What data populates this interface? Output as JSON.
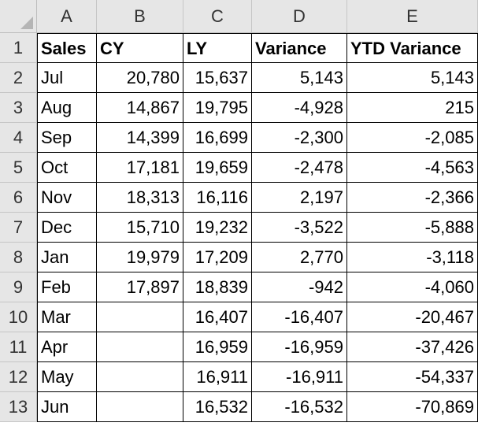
{
  "columns": [
    "A",
    "B",
    "C",
    "D",
    "E"
  ],
  "row_numbers": [
    "1",
    "2",
    "3",
    "4",
    "5",
    "6",
    "7",
    "8",
    "9",
    "10",
    "11",
    "12",
    "13"
  ],
  "header": {
    "sales": "Sales",
    "cy": "CY",
    "ly": "LY",
    "variance": "Variance",
    "ytd_variance": "YTD Variance"
  },
  "rows": [
    {
      "month": "Jul",
      "cy": "20,780",
      "ly": "15,637",
      "variance": "5,143",
      "ytd": "5,143"
    },
    {
      "month": "Aug",
      "cy": "14,867",
      "ly": "19,795",
      "variance": "-4,928",
      "ytd": "215"
    },
    {
      "month": "Sep",
      "cy": "14,399",
      "ly": "16,699",
      "variance": "-2,300",
      "ytd": "-2,085"
    },
    {
      "month": "Oct",
      "cy": "17,181",
      "ly": "19,659",
      "variance": "-2,478",
      "ytd": "-4,563"
    },
    {
      "month": "Nov",
      "cy": "18,313",
      "ly": "16,116",
      "variance": "2,197",
      "ytd": "-2,366"
    },
    {
      "month": "Dec",
      "cy": "15,710",
      "ly": "19,232",
      "variance": "-3,522",
      "ytd": "-5,888"
    },
    {
      "month": "Jan",
      "cy": "19,979",
      "ly": "17,209",
      "variance": "2,770",
      "ytd": "-3,118"
    },
    {
      "month": "Feb",
      "cy": "17,897",
      "ly": "18,839",
      "variance": "-942",
      "ytd": "-4,060"
    },
    {
      "month": "Mar",
      "cy": "",
      "ly": "16,407",
      "variance": "-16,407",
      "ytd": "-20,467"
    },
    {
      "month": "Apr",
      "cy": "",
      "ly": "16,959",
      "variance": "-16,959",
      "ytd": "-37,426"
    },
    {
      "month": "May",
      "cy": "",
      "ly": "16,911",
      "variance": "-16,911",
      "ytd": "-54,337"
    },
    {
      "month": "Jun",
      "cy": "",
      "ly": "16,532",
      "variance": "-16,532",
      "ytd": "-70,869"
    }
  ],
  "icons": {
    "select_all": "select-all-triangle-icon"
  }
}
